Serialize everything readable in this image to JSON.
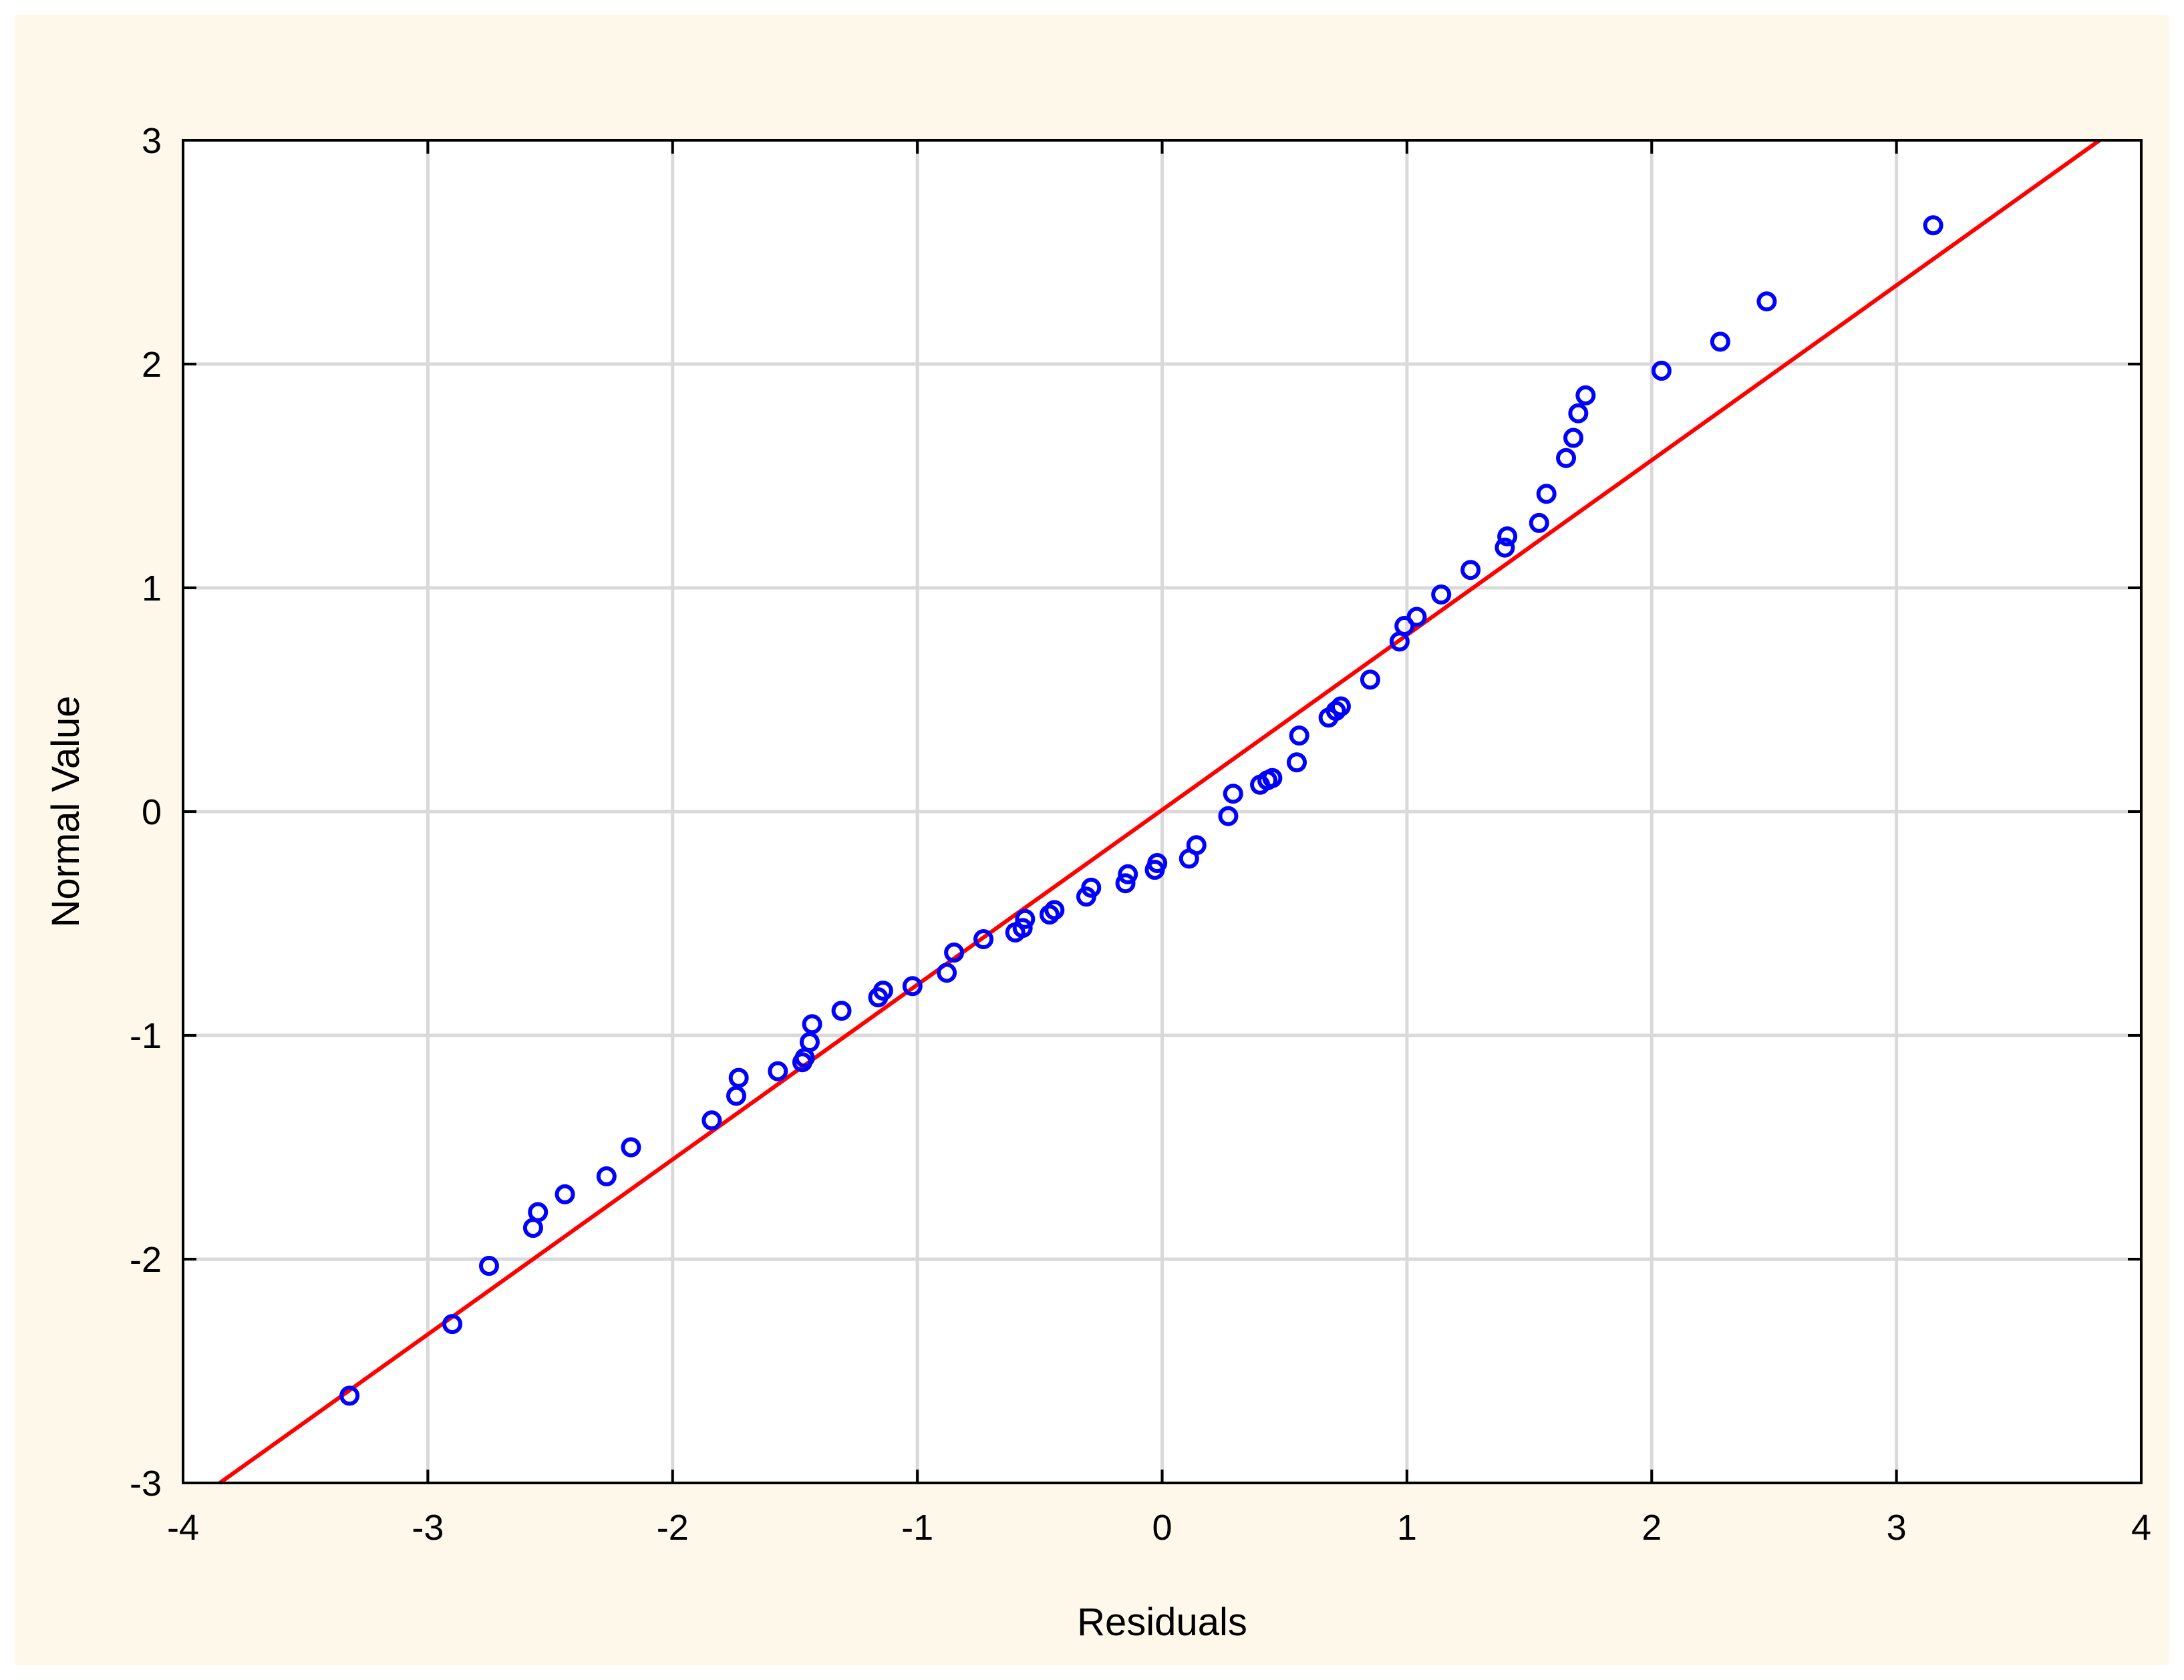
{
  "colors": {
    "page_background": "#fdf8ea",
    "plot_background": "#ffffff",
    "grid": "#d9d9d9",
    "axis": "#000000",
    "points": "#0000ff",
    "fit_line": "#ff0000"
  },
  "chart_data": {
    "type": "scatter",
    "title": "",
    "xlabel": "Residuals",
    "ylabel": "Normal Value",
    "xlim": [
      -4,
      4
    ],
    "ylim": [
      -3,
      3
    ],
    "xticks": [
      -4,
      -3,
      -2,
      -1,
      0,
      1,
      2,
      3,
      4
    ],
    "yticks": [
      -3,
      -2,
      -1,
      0,
      1,
      2,
      3
    ],
    "xtick_labels": [
      "-4",
      "-3",
      "-2",
      "-1",
      "0",
      "1",
      "2",
      "3",
      "4"
    ],
    "ytick_labels": [
      "-3",
      "-2",
      "-1",
      "0",
      "1",
      "2",
      "3"
    ],
    "grid": true,
    "legend": "none",
    "series": [
      {
        "marker": "open-circle",
        "points": [
          [
            -3.32,
            -2.61
          ],
          [
            -2.9,
            -2.29
          ],
          [
            -2.75,
            -2.03
          ],
          [
            -2.57,
            -1.86
          ],
          [
            -2.55,
            -1.79
          ],
          [
            -2.44,
            -1.71
          ],
          [
            -2.27,
            -1.63
          ],
          [
            -2.17,
            -1.5
          ],
          [
            -1.84,
            -1.38
          ],
          [
            -1.74,
            -1.27
          ],
          [
            -1.73,
            -1.19
          ],
          [
            -1.57,
            -1.16
          ],
          [
            -1.47,
            -1.12
          ],
          [
            -1.46,
            -1.1
          ],
          [
            -1.44,
            -1.03
          ],
          [
            -1.43,
            -0.95
          ],
          [
            -1.31,
            -0.89
          ],
          [
            -1.16,
            -0.83
          ],
          [
            -1.14,
            -0.8
          ],
          [
            -1.02,
            -0.78
          ],
          [
            -0.88,
            -0.72
          ],
          [
            -0.85,
            -0.63
          ],
          [
            -0.73,
            -0.57
          ],
          [
            -0.6,
            -0.54
          ],
          [
            -0.57,
            -0.52
          ],
          [
            -0.56,
            -0.48
          ],
          [
            -0.46,
            -0.46
          ],
          [
            -0.44,
            -0.44
          ],
          [
            -0.31,
            -0.38
          ],
          [
            -0.29,
            -0.34
          ],
          [
            -0.15,
            -0.32
          ],
          [
            -0.14,
            -0.28
          ],
          [
            -0.03,
            -0.26
          ],
          [
            -0.02,
            -0.23
          ],
          [
            0.11,
            -0.21
          ],
          [
            0.14,
            -0.15
          ],
          [
            0.27,
            -0.02
          ],
          [
            0.29,
            0.08
          ],
          [
            0.4,
            0.12
          ],
          [
            0.43,
            0.14
          ],
          [
            0.45,
            0.15
          ],
          [
            0.55,
            0.22
          ],
          [
            0.56,
            0.34
          ],
          [
            0.68,
            0.42
          ],
          [
            0.71,
            0.45
          ],
          [
            0.73,
            0.47
          ],
          [
            0.85,
            0.59
          ],
          [
            0.97,
            0.76
          ],
          [
            0.99,
            0.83
          ],
          [
            1.04,
            0.87
          ],
          [
            1.14,
            0.97
          ],
          [
            1.26,
            1.08
          ],
          [
            1.4,
            1.18
          ],
          [
            1.41,
            1.23
          ],
          [
            1.54,
            1.29
          ],
          [
            1.57,
            1.42
          ],
          [
            1.65,
            1.58
          ],
          [
            1.68,
            1.67
          ],
          [
            1.7,
            1.78
          ],
          [
            1.73,
            1.86
          ],
          [
            2.04,
            1.97
          ],
          [
            2.28,
            2.1
          ],
          [
            2.47,
            2.28
          ],
          [
            3.15,
            2.62
          ]
        ]
      }
    ],
    "reference_line": {
      "color": "red",
      "points": [
        [
          -3.85,
          -3.0
        ],
        [
          3.83,
          3.0
        ]
      ]
    }
  }
}
